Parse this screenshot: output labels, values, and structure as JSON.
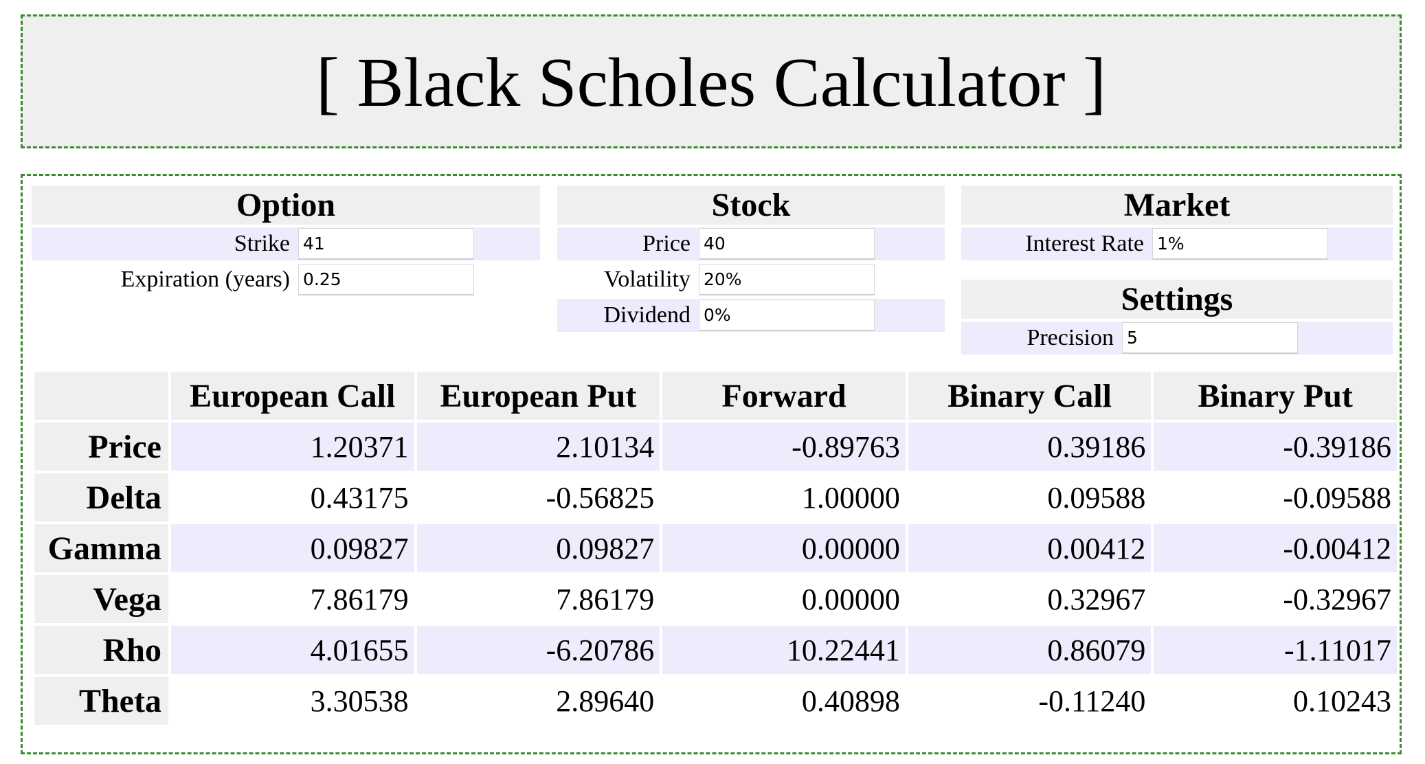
{
  "header": {
    "title": "[ Black Scholes Calculator ]"
  },
  "option": {
    "title": "Option",
    "strike_label": "Strike",
    "strike_value": "41",
    "expiration_label": "Expiration (years)",
    "expiration_value": "0.25"
  },
  "stock": {
    "title": "Stock",
    "price_label": "Price",
    "price_value": "40",
    "volatility_label": "Volatility",
    "volatility_value": "20%",
    "dividend_label": "Dividend",
    "dividend_value": "0%"
  },
  "market": {
    "title": "Market",
    "interest_label": "Interest Rate",
    "interest_value": "1%"
  },
  "settings": {
    "title": "Settings",
    "precision_label": "Precision",
    "precision_value": "5"
  },
  "colors": {
    "panel_header": "#efefef",
    "row_shade": "#ececfc",
    "dashed_border": "#3a8a2e"
  },
  "results": {
    "columns": [
      "European Call",
      "European Put",
      "Forward",
      "Binary Call",
      "Binary Put"
    ],
    "rows": [
      {
        "label": "Price",
        "values": [
          "1.20371",
          "2.10134",
          "-0.89763",
          "0.39186",
          "-0.39186"
        ]
      },
      {
        "label": "Delta",
        "values": [
          "0.43175",
          "-0.56825",
          "1.00000",
          "0.09588",
          "-0.09588"
        ]
      },
      {
        "label": "Gamma",
        "values": [
          "0.09827",
          "0.09827",
          "0.00000",
          "0.00412",
          "-0.00412"
        ]
      },
      {
        "label": "Vega",
        "values": [
          "7.86179",
          "7.86179",
          "0.00000",
          "0.32967",
          "-0.32967"
        ]
      },
      {
        "label": "Rho",
        "values": [
          "4.01655",
          "-6.20786",
          "10.22441",
          "0.86079",
          "-1.11017"
        ]
      },
      {
        "label": "Theta",
        "values": [
          "3.30538",
          "2.89640",
          "0.40898",
          "-0.11240",
          "0.10243"
        ]
      }
    ]
  }
}
